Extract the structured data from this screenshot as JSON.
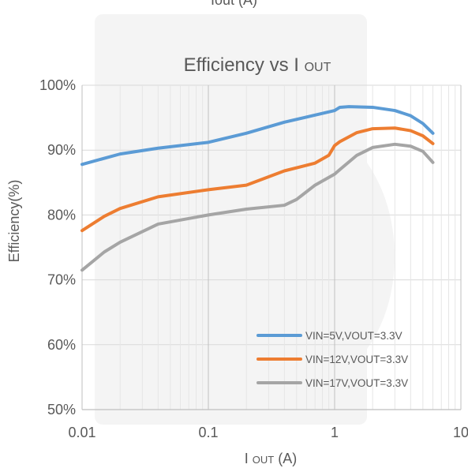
{
  "top_clipped_label": "Iout (A)",
  "chart_data": {
    "type": "line",
    "title": "Efficiency vs I",
    "title_subscript": "OUT",
    "xlabel": "I",
    "xlabel_subscript": "OUT",
    "xlabel_unit": " (A)",
    "ylabel": "Efficiency(%)",
    "xscale": "log",
    "xlim": [
      0.01,
      10
    ],
    "ylim": [
      50,
      100
    ],
    "x_ticks": [
      0.01,
      0.1,
      1,
      10
    ],
    "x_tick_labels": [
      "0.01",
      "0.1",
      "1",
      "10"
    ],
    "y_ticks": [
      50,
      60,
      70,
      80,
      90,
      100
    ],
    "y_tick_labels": [
      "50%",
      "60%",
      "70%",
      "80%",
      "90%",
      "100%"
    ],
    "grid": true,
    "legend_position": "bottom-right",
    "series": [
      {
        "name": "VIN=5V,VOUT=3.3V",
        "color": "#5b9bd5",
        "x": [
          0.01,
          0.02,
          0.04,
          0.1,
          0.2,
          0.4,
          0.7,
          1.0,
          1.1,
          1.3,
          2.0,
          3.0,
          4.0,
          5.0,
          6.0
        ],
        "y": [
          87.8,
          89.4,
          90.3,
          91.2,
          92.6,
          94.3,
          95.4,
          96.1,
          96.6,
          96.7,
          96.6,
          96.1,
          95.3,
          94.1,
          92.6
        ]
      },
      {
        "name": "VIN=12V,VOUT=3.3V",
        "color": "#ed7d31",
        "x": [
          0.01,
          0.015,
          0.02,
          0.04,
          0.1,
          0.2,
          0.4,
          0.7,
          0.9,
          1.0,
          1.1,
          1.5,
          2.0,
          3.0,
          4.0,
          5.0,
          6.0
        ],
        "y": [
          77.6,
          79.8,
          81.0,
          82.8,
          83.9,
          84.6,
          86.8,
          88.0,
          89.2,
          90.7,
          91.3,
          92.7,
          93.3,
          93.4,
          93.0,
          92.2,
          91.0
        ]
      },
      {
        "name": "VIN=17V,VOUT=3.3V",
        "color": "#a5a5a5",
        "x": [
          0.01,
          0.015,
          0.02,
          0.04,
          0.1,
          0.2,
          0.4,
          0.5,
          0.7,
          1.0,
          1.1,
          1.5,
          2.0,
          3.0,
          4.0,
          5.0,
          6.0
        ],
        "y": [
          71.5,
          74.3,
          75.8,
          78.6,
          80.0,
          80.9,
          81.5,
          82.4,
          84.6,
          86.3,
          87.0,
          89.2,
          90.4,
          90.9,
          90.6,
          89.8,
          88.1
        ]
      }
    ]
  }
}
